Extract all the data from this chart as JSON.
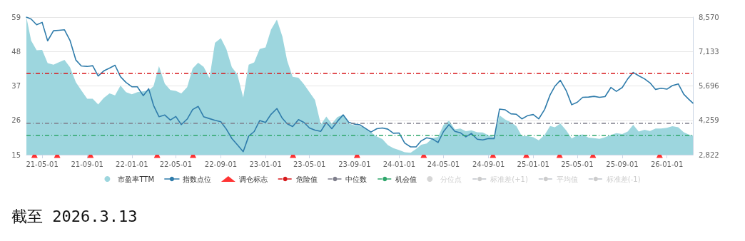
{
  "chart_data": {
    "type": "area",
    "annotations": [
      "截至 2026.3.13"
    ],
    "x": [
      "2021-03-19",
      "2021-04-01",
      "2021-04-16",
      "2021-05-01",
      "2021-05-16",
      "2021-06-01",
      "2021-06-16",
      "2021-07-01",
      "2021-07-16",
      "2021-08-01",
      "2021-08-16",
      "2021-09-01",
      "2021-09-16",
      "2021-10-01",
      "2021-10-16",
      "2021-11-01",
      "2021-11-16",
      "2021-12-01",
      "2021-12-16",
      "2022-01-01",
      "2022-01-16",
      "2022-02-01",
      "2022-02-16",
      "2022-03-01",
      "2022-03-16",
      "2022-04-01",
      "2022-04-16",
      "2022-05-01",
      "2022-05-16",
      "2022-06-01",
      "2022-06-16",
      "2022-07-01",
      "2022-07-16",
      "2022-08-01",
      "2022-08-16",
      "2022-09-01",
      "2022-09-16",
      "2022-10-01",
      "2022-10-16",
      "2022-11-01",
      "2022-11-16",
      "2022-12-01",
      "2022-12-16",
      "2023-01-01",
      "2023-01-16",
      "2023-02-01",
      "2023-02-16",
      "2023-03-01",
      "2023-03-16",
      "2023-04-01",
      "2023-04-16",
      "2023-05-01",
      "2023-05-16",
      "2023-06-01",
      "2023-06-16",
      "2023-07-01",
      "2023-07-16",
      "2023-08-01",
      "2023-08-16",
      "2023-09-01",
      "2023-09-16",
      "2023-10-01",
      "2023-10-16",
      "2023-11-01",
      "2023-11-16",
      "2023-12-01",
      "2023-12-16",
      "2024-01-01",
      "2024-01-16",
      "2024-02-01",
      "2024-02-16",
      "2024-03-01",
      "2024-03-16",
      "2024-04-01",
      "2024-04-16",
      "2024-05-01",
      "2024-05-16",
      "2024-06-01",
      "2024-06-16",
      "2024-07-01",
      "2024-07-16",
      "2024-08-01",
      "2024-08-16",
      "2024-09-01",
      "2024-09-16",
      "2024-10-01",
      "2024-10-16",
      "2024-11-01",
      "2024-11-16",
      "2024-12-01",
      "2024-12-16",
      "2025-01-01",
      "2025-01-16",
      "2025-02-01",
      "2025-02-16",
      "2025-03-01",
      "2025-03-16",
      "2025-04-01",
      "2025-04-16",
      "2025-05-01",
      "2025-05-16",
      "2025-06-01",
      "2025-06-16",
      "2025-07-01",
      "2025-07-16",
      "2025-08-01",
      "2025-08-16",
      "2025-09-01",
      "2025-09-16",
      "2025-10-01",
      "2025-10-16",
      "2025-11-01",
      "2025-11-16",
      "2025-12-01",
      "2025-12-16",
      "2026-01-01",
      "2026-01-16",
      "2026-02-01",
      "2026-02-16",
      "2026-03-01",
      "2026-03-13"
    ],
    "series": [
      {
        "name": "市盈率TTM",
        "color": "#9dd6de",
        "marker": "none",
        "values": [
          59,
          51.5,
          48.4,
          48.5,
          44.3,
          43.8,
          44.6,
          45.3,
          43.0,
          38.2,
          35.6,
          32.9,
          32.9,
          31.1,
          33.1,
          34.6,
          34.0,
          37.1,
          35.0,
          34.3,
          35.0,
          35.3,
          35.6,
          36.9,
          43.3,
          37.7,
          35.7,
          35.4,
          34.6,
          36.6,
          42.6,
          44.4,
          43.1,
          39.5,
          50.8,
          52.3,
          48.8,
          43.0,
          40.7,
          33.3,
          43.8,
          44.5,
          48.8,
          49.3,
          55.0,
          58.2,
          52.8,
          45.1,
          39.9,
          39.6,
          37.5,
          35.0,
          32.5,
          24.7,
          27.2,
          24.9,
          27.0,
          27.8,
          25.0,
          24.4,
          24.1,
          23.5,
          22.2,
          20.8,
          20.0,
          18.1,
          17.1,
          16.5,
          15.8,
          15.6,
          16.8,
          18.2,
          18.6,
          20.3,
          20.7,
          24.5,
          25.9,
          23.1,
          23.4,
          22.5,
          22.8,
          22.2,
          22.1,
          21.2,
          20.7,
          27.6,
          26.3,
          25.4,
          24.1,
          20.9,
          21.0,
          20.6,
          19.6,
          21.3,
          24.2,
          23.8,
          25.0,
          22.8,
          20.2,
          21.2,
          21.5,
          20.5,
          20.3,
          20.1,
          20.6,
          21.3,
          21.9,
          21.6,
          22.4,
          24.6,
          22.4,
          23.0,
          22.6,
          23.4,
          23.4,
          23.6,
          24.1,
          23.8,
          22.2,
          21.5,
          21.1
        ]
      },
      {
        "name": "指数点位",
        "type": "line",
        "axis": "y2",
        "color": "#2f7cab",
        "marker": "none",
        "values": [
          8570,
          8490,
          8250,
          8350,
          7580,
          8000,
          8020,
          8040,
          7600,
          6780,
          6530,
          6510,
          6540,
          6110,
          6320,
          6440,
          6560,
          6080,
          5840,
          5660,
          5660,
          5290,
          5580,
          4890,
          4410,
          4480,
          4270,
          4420,
          4080,
          4310,
          4710,
          4840,
          4410,
          4330,
          4260,
          4200,
          3890,
          3500,
          3240,
          2950,
          3600,
          3790,
          4250,
          4170,
          4510,
          4750,
          4340,
          4120,
          4000,
          4290,
          4170,
          3940,
          3850,
          3800,
          4170,
          3910,
          4210,
          4490,
          4180,
          4100,
          4070,
          3920,
          3770,
          3910,
          3940,
          3890,
          3720,
          3730,
          3310,
          3150,
          3150,
          3400,
          3530,
          3480,
          3330,
          3790,
          4080,
          3800,
          3740,
          3570,
          3710,
          3470,
          3440,
          3500,
          3490,
          4730,
          4700,
          4530,
          4510,
          4320,
          4450,
          4500,
          4320,
          4710,
          5320,
          5680,
          5930,
          5500,
          4910,
          5010,
          5220,
          5230,
          5260,
          5220,
          5250,
          5630,
          5470,
          5630,
          5990,
          6260,
          6120,
          5990,
          5820,
          5550,
          5600,
          5560,
          5710,
          5780,
          5350,
          5150,
          4980
        ]
      },
      {
        "name": "调仓标志",
        "type": "scatter",
        "color": "#ff0000",
        "marker": "triangle",
        "x": [
          "2021-04-10",
          "2021-06-11",
          "2021-09-10",
          "2022-03-11",
          "2022-06-17",
          "2023-03-17",
          "2023-09-08",
          "2024-03-08",
          "2024-09-13",
          "2024-12-13",
          "2025-03-14",
          "2025-06-13",
          "2025-12-12"
        ],
        "values": [
          15,
          15,
          15,
          15,
          15,
          15,
          15,
          15,
          15,
          15,
          15,
          15,
          15
        ]
      },
      {
        "name": "分位点",
        "type": "scatter",
        "color": "#cccccc",
        "marker": "circle",
        "values": [
          null,
          null,
          null,
          null,
          null,
          null,
          null,
          null,
          null,
          null,
          null,
          null,
          null,
          null,
          null,
          null,
          null,
          null,
          null,
          null,
          null,
          null,
          null,
          null,
          null,
          null,
          null,
          null,
          null,
          null,
          null,
          null,
          null,
          null,
          null,
          null,
          null,
          null,
          null,
          null,
          null,
          null,
          null,
          null,
          null,
          null,
          null,
          null,
          null,
          null,
          null,
          null,
          null,
          null,
          null,
          null,
          null,
          null,
          null,
          null,
          null,
          null,
          null,
          null,
          null,
          null,
          null,
          null,
          null,
          null,
          null,
          null,
          null,
          null,
          null,
          null,
          null,
          null,
          null,
          null,
          null,
          null,
          null,
          null,
          null,
          null,
          null,
          null,
          null,
          null,
          null,
          null,
          null,
          null,
          null,
          null,
          null,
          null,
          null,
          null,
          null,
          null,
          null,
          null,
          null,
          null,
          null,
          null,
          null,
          null,
          null,
          null,
          null,
          null,
          null,
          null,
          null,
          null,
          null,
          null,
          null
        ]
      },
      {
        "name": "标准差(+1)",
        "type": "line",
        "color": "#cccccc",
        "marker": "none",
        "line_style": "dashed",
        "values": [
          null,
          null,
          null,
          null,
          null,
          null,
          null,
          null,
          null,
          null,
          null,
          null,
          null,
          null,
          null,
          null,
          null,
          null,
          null,
          null,
          null,
          null,
          null,
          null,
          null,
          null,
          null,
          null,
          null,
          null,
          null,
          null,
          null,
          null,
          null,
          null,
          null,
          null,
          null,
          null,
          null,
          null,
          null,
          null,
          null,
          null,
          null,
          null,
          null,
          null,
          null,
          null,
          null,
          null,
          null,
          null,
          null,
          null,
          null,
          null,
          null,
          null,
          null,
          null,
          null,
          null,
          null,
          null,
          null,
          null,
          null,
          null,
          null,
          null,
          null,
          null,
          null,
          null,
          null,
          null,
          null,
          null,
          null,
          null,
          null,
          null,
          null,
          null,
          null,
          null,
          null,
          null,
          null,
          null,
          null,
          null,
          null,
          null,
          null,
          null,
          null,
          null,
          null,
          null,
          null,
          null,
          null,
          null,
          null,
          null,
          null,
          null,
          null,
          null,
          null,
          null,
          null,
          null,
          null,
          null,
          null
        ]
      },
      {
        "name": "平均值",
        "type": "line",
        "color": "#cccccc",
        "marker": "none",
        "line_style": "dashed",
        "values": [
          null,
          null,
          null,
          null,
          null,
          null,
          null,
          null,
          null,
          null,
          null,
          null,
          null,
          null,
          null,
          null,
          null,
          null,
          null,
          null,
          null,
          null,
          null,
          null,
          null,
          null,
          null,
          null,
          null,
          null,
          null,
          null,
          null,
          null,
          null,
          null,
          null,
          null,
          null,
          null,
          null,
          null,
          null,
          null,
          null,
          null,
          null,
          null,
          null,
          null,
          null,
          null,
          null,
          null,
          null,
          null,
          null,
          null,
          null,
          null,
          null,
          null,
          null,
          null,
          null,
          null,
          null,
          null,
          null,
          null,
          null,
          null,
          null,
          null,
          null,
          null,
          null,
          null,
          null,
          null,
          null,
          null,
          null,
          null,
          null,
          null,
          null,
          null,
          null,
          null,
          null,
          null,
          null,
          null,
          null,
          null,
          null,
          null,
          null,
          null,
          null,
          null,
          null,
          null,
          null,
          null,
          null,
          null,
          null,
          null,
          null,
          null,
          null,
          null,
          null,
          null,
          null,
          null,
          null,
          null,
          null
        ]
      },
      {
        "name": "标准差(-1)",
        "type": "line",
        "color": "#cccccc",
        "marker": "none",
        "line_style": "dashed",
        "values": [
          null,
          null,
          null,
          null,
          null,
          null,
          null,
          null,
          null,
          null,
          null,
          null,
          null,
          null,
          null,
          null,
          null,
          null,
          null,
          null,
          null,
          null,
          null,
          null,
          null,
          null,
          null,
          null,
          null,
          null,
          null,
          null,
          null,
          null,
          null,
          null,
          null,
          null,
          null,
          null,
          null,
          null,
          null,
          null,
          null,
          null,
          null,
          null,
          null,
          null,
          null,
          null,
          null,
          null,
          null,
          null,
          null,
          null,
          null,
          null,
          null,
          null,
          null,
          null,
          null,
          null,
          null,
          null,
          null,
          null,
          null,
          null,
          null,
          null,
          null,
          null,
          null,
          null,
          null,
          null,
          null,
          null,
          null,
          null,
          null,
          null,
          null,
          null,
          null,
          null,
          null,
          null,
          null,
          null,
          null,
          null,
          null,
          null,
          null,
          null,
          null,
          null,
          null,
          null,
          null,
          null,
          null,
          null,
          null,
          null,
          null,
          null,
          null,
          null,
          null,
          null,
          null,
          null,
          null,
          null,
          null
        ]
      }
    ],
    "ref_lines": [
      {
        "axis": "y",
        "value": 41.0,
        "label": "危险值",
        "color": "#d7191c",
        "line_style": "dashed"
      },
      {
        "axis": "y",
        "value": 25.0,
        "label": "中位数",
        "color": "#7f7f8c",
        "line_style": "dashed"
      },
      {
        "axis": "y",
        "value": 21.1,
        "label": "机会值",
        "color": "#2ea66b",
        "line_style": "dashed"
      }
    ],
    "xlim": [
      "2021-03-19",
      "2026-03-13"
    ],
    "xticks": [
      {
        "value": "2021-05-01",
        "label": "21-05-01"
      },
      {
        "value": "2021-09-01",
        "label": "21-09-01"
      },
      {
        "value": "2022-01-01",
        "label": "22-01-01"
      },
      {
        "value": "2022-05-01",
        "label": "22-05-01"
      },
      {
        "value": "2022-09-01",
        "label": "22-09-01"
      },
      {
        "value": "2023-01-01",
        "label": "23-01-01"
      },
      {
        "value": "2023-05-01",
        "label": "23-05-01"
      },
      {
        "value": "2023-09-01",
        "label": "23-09-01"
      },
      {
        "value": "2024-01-01",
        "label": "24-01-01"
      },
      {
        "value": "2024-05-01",
        "label": "24-05-01"
      },
      {
        "value": "2024-09-01",
        "label": "24-09-01"
      },
      {
        "value": "2025-01-01",
        "label": "25-01-01"
      },
      {
        "value": "2025-05-01",
        "label": "25-05-01"
      },
      {
        "value": "2025-09-01",
        "label": "25-09-01"
      },
      {
        "value": "2026-01-01",
        "label": "26-01-01"
      }
    ],
    "ylim": [
      15,
      59
    ],
    "yticks": [
      15,
      26,
      37,
      48,
      59
    ],
    "y2lim": [
      2822,
      8570
    ],
    "y2ticks": [
      {
        "value": 2822,
        "label": "2,822"
      },
      {
        "value": 4259,
        "label": "4,259"
      },
      {
        "value": 5696,
        "label": "5,696"
      },
      {
        "value": 7133,
        "label": "7,133"
      },
      {
        "value": 8570,
        "label": "8,570"
      }
    ],
    "grid": "y",
    "legend": "bottom"
  }
}
